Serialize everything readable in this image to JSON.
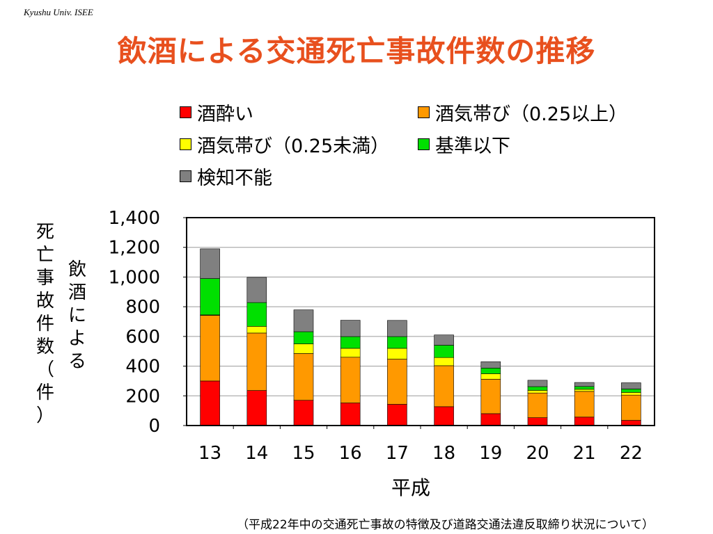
{
  "header": {
    "org": "Kyushu Univ. ISEE",
    "title": "飲酒による交通死亡事故件数の推移"
  },
  "footnote": "（平成22年中の交通死亡事故の特徴及び道路交通法違反取締り状況について）",
  "colors": {
    "title": "#e8501e",
    "s1": "#ff0000",
    "s2": "#ff9900",
    "s3": "#ffff00",
    "s4": "#00e000",
    "s5": "#808080"
  },
  "chart_data": {
    "type": "bar",
    "stacked": true,
    "categories": [
      "13",
      "14",
      "15",
      "16",
      "17",
      "18",
      "19",
      "20",
      "21",
      "22"
    ],
    "xlabel": "平成",
    "ylabel_outer": "死亡事故件数（件）",
    "ylabel_inner": "飲酒による",
    "ylim": [
      0,
      1400
    ],
    "yticks": [
      0,
      200,
      400,
      600,
      800,
      1000,
      1200,
      1400
    ],
    "ytick_labels": [
      "0",
      "200",
      "400",
      "600",
      "800",
      "1,000",
      "1,200",
      "1,400"
    ],
    "grid": true,
    "legend_position": "top",
    "series": [
      {
        "name": "酒酔い",
        "color": "#ff0000",
        "values": [
          300,
          236,
          170,
          152,
          143,
          127,
          80,
          53,
          57,
          35
        ]
      },
      {
        "name": "酒気帯び（0.25以上）",
        "color": "#ff9900",
        "values": [
          442,
          387,
          315,
          308,
          304,
          276,
          232,
          166,
          173,
          170
        ]
      },
      {
        "name": "酒気帯び（0.25未満）",
        "color": "#ffff00",
        "values": [
          3,
          45,
          65,
          60,
          73,
          55,
          37,
          18,
          14,
          18
        ]
      },
      {
        "name": "基準以下",
        "color": "#00e000",
        "values": [
          245,
          160,
          82,
          79,
          79,
          83,
          38,
          25,
          19,
          23
        ]
      },
      {
        "name": "検知不能",
        "color": "#808080",
        "values": [
          200,
          170,
          147,
          110,
          109,
          69,
          43,
          43,
          27,
          42
        ]
      }
    ]
  }
}
